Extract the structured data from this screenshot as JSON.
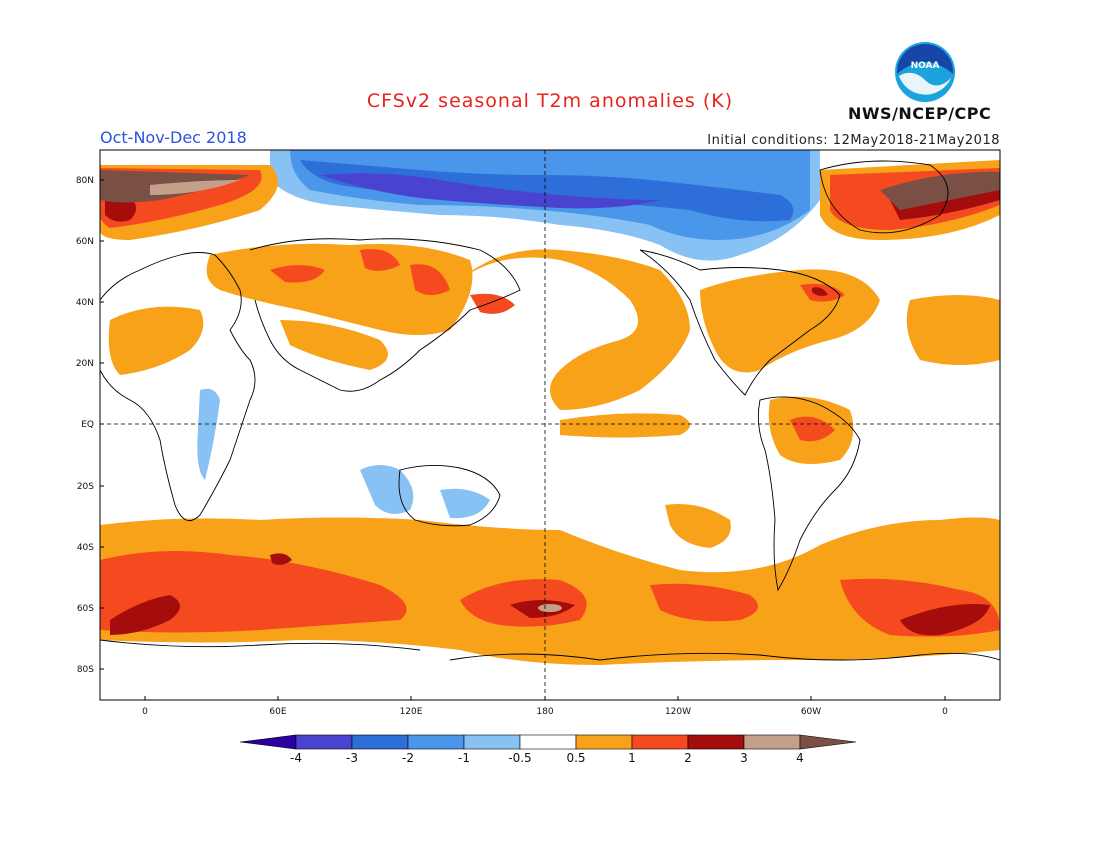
{
  "title": "CFSv2 seasonal T2m anomalies (K)",
  "season": "Oct-Nov-Dec 2018",
  "initial_conditions": "Initial conditions: 12May2018-21May2018",
  "agency": "NWS/NCEP/CPC",
  "logo_text": "NOAA",
  "lat_labels": [
    "80N",
    "60N",
    "40N",
    "20N",
    "EQ",
    "20S",
    "40S",
    "60S",
    "80S"
  ],
  "lon_labels": [
    "0",
    "60E",
    "120E",
    "180",
    "120W",
    "60W",
    "0"
  ],
  "colorbar": {
    "labels": [
      "-4",
      "-3",
      "-2",
      "-1",
      "-0.5",
      "0.5",
      "1",
      "2",
      "3",
      "4"
    ],
    "colors": [
      "#2a00a0",
      "#4a43d0",
      "#2e6ed8",
      "#4a96ea",
      "#88c2f5",
      "#ffffff",
      "#f8a21a",
      "#f54a1f",
      "#a50c0c",
      "#c4a08a",
      "#7a5044"
    ]
  },
  "palette": {
    "warm_orange": "#f8a21a",
    "warm_red": "#f54a1f",
    "warm_dark": "#a50c0c",
    "warm_tan": "#c4a08a",
    "warm_brown": "#7a5044",
    "cool_light": "#88c2f5",
    "cool_mid": "#4a96ea",
    "cool_blue": "#2e6ed8",
    "cool_deep": "#4a43d0",
    "cool_darkest": "#2a00a0"
  }
}
